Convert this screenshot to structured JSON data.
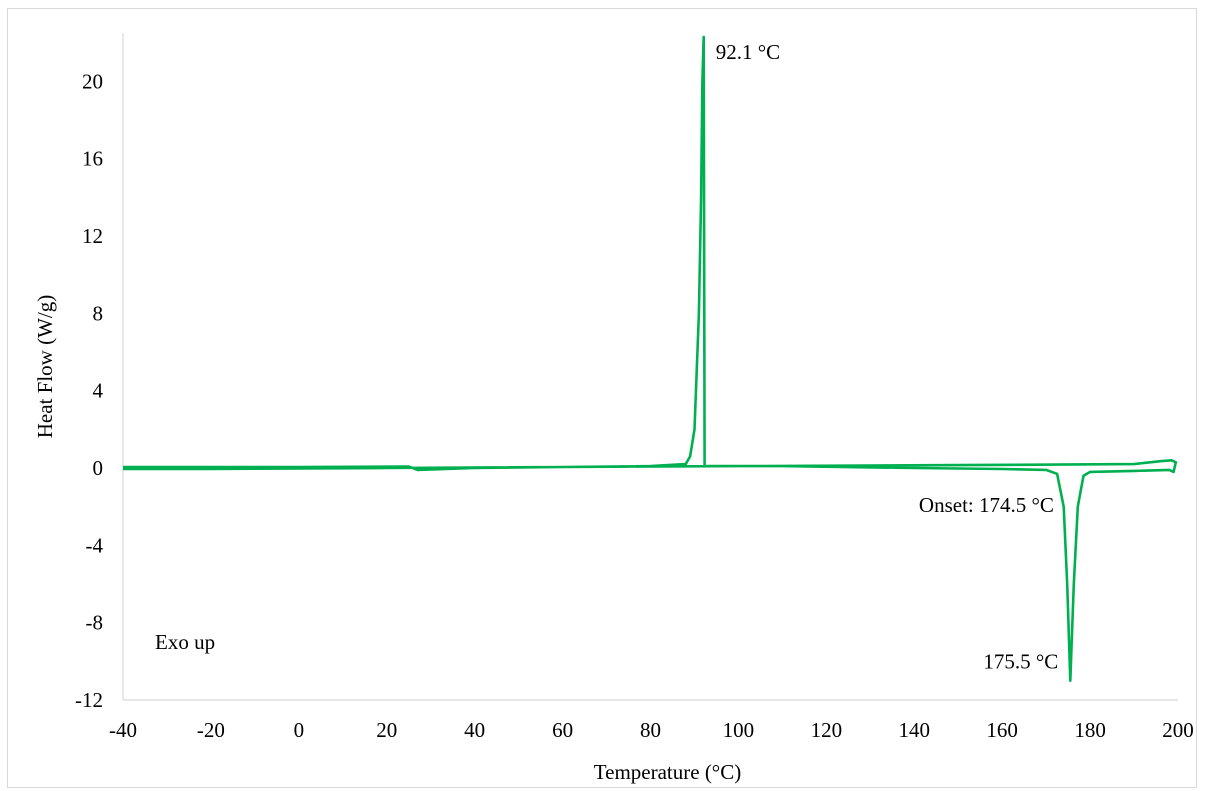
{
  "chart_data": {
    "type": "line",
    "title": "",
    "xlabel": "Temperature (°C)",
    "ylabel": "Heat Flow (W/g)",
    "xlim": [
      -40,
      200
    ],
    "ylim": [
      -12,
      22.5
    ],
    "xticks": [
      -40,
      -20,
      0,
      20,
      40,
      60,
      80,
      100,
      120,
      140,
      160,
      180,
      200
    ],
    "yticks": [
      -12,
      -8,
      -4,
      0,
      4,
      8,
      12,
      16,
      20
    ],
    "grid": false,
    "line_color": "#00b050",
    "series": [
      {
        "name": "",
        "segments": [
          [
            [
              -40,
              0.05
            ],
            [
              0,
              0.05
            ],
            [
              25,
              0.08
            ],
            [
              27,
              -0.1
            ],
            [
              40,
              0.0
            ],
            [
              60,
              0.05
            ],
            [
              80,
              0.1
            ],
            [
              88,
              0.2
            ],
            [
              89,
              0.6
            ],
            [
              90,
              2.0
            ],
            [
              91,
              8.0
            ],
            [
              91.5,
              14.0
            ],
            [
              91.8,
              20.0
            ],
            [
              92.1,
              22.3
            ],
            [
              92.3,
              0.1
            ],
            [
              110,
              0.1
            ],
            [
              140,
              0.0
            ],
            [
              160,
              -0.05
            ],
            [
              170,
              -0.1
            ],
            [
              172.5,
              -0.3
            ],
            [
              174,
              -2.0
            ],
            [
              174.8,
              -6.0
            ],
            [
              175.5,
              -11.0
            ],
            [
              176.3,
              -6.0
            ],
            [
              177.2,
              -2.0
            ],
            [
              178.5,
              -0.4
            ],
            [
              180,
              -0.2
            ],
            [
              190,
              -0.15
            ],
            [
              198,
              -0.1
            ],
            [
              199,
              -0.2
            ],
            [
              199.5,
              0.3
            ],
            [
              198.5,
              0.4
            ],
            [
              196,
              0.35
            ],
            [
              190,
              0.2
            ],
            [
              150,
              0.15
            ],
            [
              100,
              0.1
            ],
            [
              60,
              0.05
            ],
            [
              20,
              0.0
            ],
            [
              -20,
              -0.05
            ],
            [
              -40,
              -0.05
            ]
          ]
        ]
      }
    ],
    "annotations": [
      {
        "text": "92.1 °C",
        "x": 92.1,
        "y": 22.3
      },
      {
        "text": "Onset: 174.5 °C",
        "x": 174.5,
        "y": -0.3
      },
      {
        "text": "175.5 °C",
        "x": 175.5,
        "y": -11.0
      },
      {
        "text": "Exo up",
        "x": -40,
        "y": -9
      }
    ]
  }
}
